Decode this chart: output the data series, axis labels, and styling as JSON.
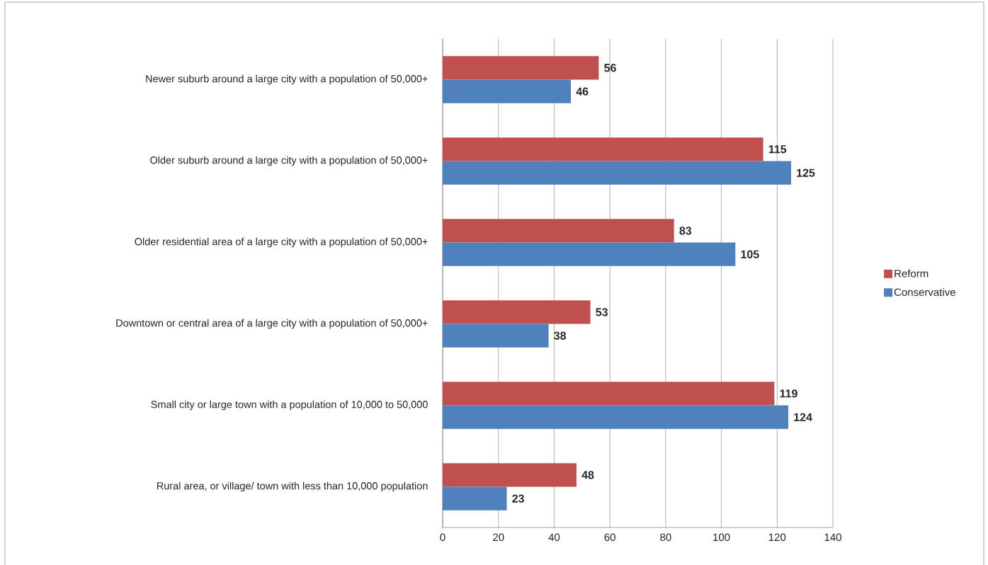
{
  "chart_data": {
    "type": "bar",
    "orientation": "horizontal",
    "categories": [
      "Newer suburb around a large city with a population of 50,000+",
      "Older suburb around a large city with a population of 50,000+",
      "Older residential area of a large city with a population of 50,000+",
      "Downtown or central area of a large city with a population of 50,000+",
      "Small city or large town with a population of 10,000 to 50,000",
      "Rural area, or village/  town with less than 10,000 population"
    ],
    "series": [
      {
        "name": "Reform",
        "color": "#c0504d",
        "values": [
          56,
          115,
          83,
          53,
          119,
          48
        ]
      },
      {
        "name": "Conservative",
        "color": "#4f81bd",
        "values": [
          46,
          125,
          105,
          38,
          124,
          23
        ]
      }
    ],
    "xlim": [
      0,
      140
    ],
    "xticks": [
      0,
      20,
      40,
      60,
      80,
      100,
      120,
      140
    ],
    "grid": "x",
    "legend": "right",
    "data_labels": true
  }
}
